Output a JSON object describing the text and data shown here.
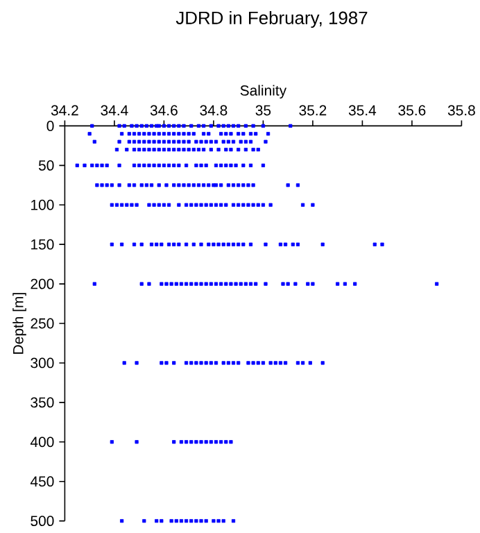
{
  "chart_data": {
    "type": "scatter",
    "title": "JDRD in February, 1987",
    "xlabel": "Salinity",
    "ylabel": "Depth [m]",
    "xlim": [
      34.2,
      35.8
    ],
    "xticks": [
      34.2,
      34.4,
      34.6,
      34.8,
      35,
      35.2,
      35.4,
      35.6,
      35.8
    ],
    "ylim": [
      500,
      0
    ],
    "yticks": [
      0,
      50,
      100,
      150,
      200,
      250,
      300,
      350,
      400,
      450,
      500
    ],
    "marker": "square",
    "series": [
      {
        "color": "#0000ff",
        "x": [
          34.31,
          34.42,
          34.44,
          34.47,
          34.49,
          34.51,
          34.53,
          34.55,
          34.57,
          34.58,
          34.6,
          34.62,
          34.64,
          34.66,
          34.68,
          34.71,
          34.74,
          34.76,
          34.79,
          34.82,
          34.84,
          34.86,
          34.88,
          34.9,
          34.93,
          34.96,
          35.0,
          35.11
        ],
        "values": [
          0,
          0,
          0,
          0,
          0,
          0,
          0,
          0,
          0,
          0,
          0,
          0,
          0,
          0,
          0,
          0,
          0,
          0,
          0,
          0,
          0,
          0,
          0,
          0,
          0,
          0,
          0,
          0
        ]
      },
      {
        "color": "#0000ff",
        "x": [
          34.3,
          34.43,
          34.46,
          34.48,
          34.5,
          34.52,
          34.54,
          34.56,
          34.58,
          34.6,
          34.62,
          34.64,
          34.66,
          34.68,
          34.7,
          34.72,
          34.76,
          34.78,
          34.83,
          34.85,
          34.87,
          34.9,
          34.92,
          34.95,
          34.97,
          35.02
        ],
        "values": [
          10,
          10,
          10,
          10,
          10,
          10,
          10,
          10,
          10,
          10,
          10,
          10,
          10,
          10,
          10,
          10,
          10,
          10,
          10,
          10,
          10,
          10,
          10,
          10,
          10,
          10
        ]
      },
      {
        "color": "#0000ff",
        "x": [
          34.32,
          34.42,
          34.46,
          34.48,
          34.5,
          34.52,
          34.54,
          34.56,
          34.58,
          34.6,
          34.62,
          34.64,
          34.66,
          34.68,
          34.7,
          34.73,
          34.75,
          34.77,
          34.79,
          34.81,
          34.84,
          34.86,
          34.88,
          34.91,
          34.93,
          34.95,
          35.01
        ],
        "values": [
          20,
          20,
          20,
          20,
          20,
          20,
          20,
          20,
          20,
          20,
          20,
          20,
          20,
          20,
          20,
          20,
          20,
          20,
          20,
          20,
          20,
          20,
          20,
          20,
          20,
          20,
          20
        ]
      },
      {
        "color": "#0000ff",
        "x": [
          34.41,
          34.45,
          34.48,
          34.5,
          34.52,
          34.54,
          34.56,
          34.58,
          34.6,
          34.62,
          34.64,
          34.66,
          34.68,
          34.7,
          34.72,
          34.74,
          34.76,
          34.79,
          34.82,
          34.85,
          34.87,
          34.9,
          34.93,
          34.96,
          34.98
        ],
        "values": [
          30,
          30,
          30,
          30,
          30,
          30,
          30,
          30,
          30,
          30,
          30,
          30,
          30,
          30,
          30,
          30,
          30,
          30,
          30,
          30,
          30,
          30,
          30,
          30,
          30
        ]
      },
      {
        "color": "#0000ff",
        "x": [
          34.25,
          34.28,
          34.31,
          34.33,
          34.35,
          34.37,
          34.42,
          34.48,
          34.5,
          34.52,
          34.54,
          34.56,
          34.58,
          34.6,
          34.62,
          34.64,
          34.66,
          34.69,
          34.73,
          34.75,
          34.77,
          34.81,
          34.83,
          34.85,
          34.87,
          34.89,
          34.92,
          34.95,
          35.0
        ],
        "values": [
          50,
          50,
          50,
          50,
          50,
          50,
          50,
          50,
          50,
          50,
          50,
          50,
          50,
          50,
          50,
          50,
          50,
          50,
          50,
          50,
          50,
          50,
          50,
          50,
          50,
          50,
          50,
          50,
          50
        ]
      },
      {
        "color": "#0000ff",
        "x": [
          34.33,
          34.35,
          34.37,
          34.39,
          34.42,
          34.46,
          34.48,
          34.51,
          34.53,
          34.55,
          34.58,
          34.61,
          34.64,
          34.66,
          34.68,
          34.7,
          34.72,
          34.74,
          34.76,
          34.78,
          34.8,
          34.81,
          34.83,
          34.86,
          34.88,
          34.9,
          34.92,
          34.94,
          34.96,
          35.1,
          35.14
        ],
        "values": [
          75,
          75,
          75,
          75,
          75,
          75,
          75,
          75,
          75,
          75,
          75,
          75,
          75,
          75,
          75,
          75,
          75,
          75,
          75,
          75,
          75,
          75,
          75,
          75,
          75,
          75,
          75,
          75,
          75,
          75,
          75
        ]
      },
      {
        "color": "#0000ff",
        "x": [
          34.39,
          34.41,
          34.43,
          34.45,
          34.47,
          34.49,
          34.54,
          34.56,
          34.58,
          34.6,
          34.62,
          34.66,
          34.69,
          34.71,
          34.73,
          34.75,
          34.77,
          34.79,
          34.81,
          34.83,
          34.85,
          34.88,
          34.9,
          34.92,
          34.94,
          34.96,
          34.98,
          35.0,
          35.03,
          35.16,
          35.2
        ],
        "values": [
          100,
          100,
          100,
          100,
          100,
          100,
          100,
          100,
          100,
          100,
          100,
          100,
          100,
          100,
          100,
          100,
          100,
          100,
          100,
          100,
          100,
          100,
          100,
          100,
          100,
          100,
          100,
          100,
          100,
          100,
          100
        ]
      },
      {
        "color": "#0000ff",
        "x": [
          34.39,
          34.43,
          34.48,
          34.51,
          34.55,
          34.57,
          34.59,
          34.62,
          34.64,
          34.66,
          34.69,
          34.72,
          34.75,
          34.78,
          34.8,
          34.82,
          34.84,
          34.86,
          34.88,
          34.9,
          34.92,
          34.95,
          35.01,
          35.07,
          35.09,
          35.12,
          35.14,
          35.24,
          35.45,
          35.48
        ],
        "values": [
          150,
          150,
          150,
          150,
          150,
          150,
          150,
          150,
          150,
          150,
          150,
          150,
          150,
          150,
          150,
          150,
          150,
          150,
          150,
          150,
          150,
          150,
          150,
          150,
          150,
          150,
          150,
          150,
          150,
          150
        ]
      },
      {
        "color": "#0000ff",
        "x": [
          34.32,
          34.51,
          34.54,
          34.59,
          34.61,
          34.63,
          34.65,
          34.67,
          34.69,
          34.71,
          34.73,
          34.75,
          34.77,
          34.79,
          34.81,
          34.83,
          34.85,
          34.87,
          34.89,
          34.91,
          34.93,
          34.95,
          34.97,
          35.01,
          35.08,
          35.1,
          35.13,
          35.18,
          35.2,
          35.3,
          35.33,
          35.37,
          35.7
        ],
        "values": [
          200,
          200,
          200,
          200,
          200,
          200,
          200,
          200,
          200,
          200,
          200,
          200,
          200,
          200,
          200,
          200,
          200,
          200,
          200,
          200,
          200,
          200,
          200,
          200,
          200,
          200,
          200,
          200,
          200,
          200,
          200,
          200,
          200
        ]
      },
      {
        "color": "#0000ff",
        "x": [
          34.44,
          34.49,
          34.59,
          34.61,
          34.64,
          34.69,
          34.71,
          34.73,
          34.75,
          34.77,
          34.79,
          34.81,
          34.84,
          34.86,
          34.88,
          34.9,
          34.94,
          34.96,
          34.98,
          35.0,
          35.03,
          35.05,
          35.07,
          35.09,
          35.14,
          35.16,
          35.19,
          35.24
        ],
        "values": [
          300,
          300,
          300,
          300,
          300,
          300,
          300,
          300,
          300,
          300,
          300,
          300,
          300,
          300,
          300,
          300,
          300,
          300,
          300,
          300,
          300,
          300,
          300,
          300,
          300,
          300,
          300,
          300
        ]
      },
      {
        "color": "#0000ff",
        "x": [
          34.39,
          34.49,
          34.64,
          34.67,
          34.69,
          34.71,
          34.73,
          34.75,
          34.77,
          34.79,
          34.81,
          34.83,
          34.85,
          34.87
        ],
        "values": [
          400,
          400,
          400,
          400,
          400,
          400,
          400,
          400,
          400,
          400,
          400,
          400,
          400,
          400
        ]
      },
      {
        "color": "#0000ff",
        "x": [
          34.43,
          34.52,
          34.57,
          34.59,
          34.63,
          34.65,
          34.67,
          34.69,
          34.71,
          34.73,
          34.75,
          34.77,
          34.8,
          34.82,
          34.84,
          34.88
        ],
        "values": [
          500,
          500,
          500,
          500,
          500,
          500,
          500,
          500,
          500,
          500,
          500,
          500,
          500,
          500,
          500,
          500
        ]
      }
    ]
  }
}
